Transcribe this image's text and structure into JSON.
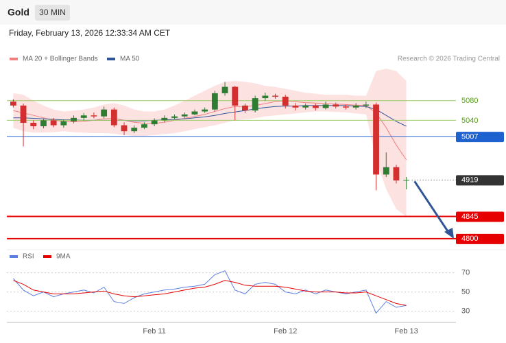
{
  "header": {
    "symbol": "Gold",
    "interval": "30 MIN",
    "timestamp": "Friday, February 13, 2026 12:33:34 AM CET"
  },
  "chart_data": [
    {
      "type": "candlestick",
      "source": "Research © 2026 Trading Central",
      "categories": [
        null,
        null,
        null,
        null,
        null,
        null,
        null,
        null,
        null,
        null,
        null,
        null,
        null,
        null,
        "Feb 11",
        null,
        null,
        null,
        null,
        null,
        null,
        null,
        null,
        null,
        null,
        null,
        null,
        "Feb 12",
        null,
        null,
        null,
        null,
        null,
        null,
        null,
        null,
        null,
        null,
        null,
        "Feb 13"
      ],
      "open": [
        5078,
        5070,
        5035,
        5028,
        5040,
        5030,
        5038,
        5045,
        5050,
        5048,
        5062,
        5030,
        5018,
        5025,
        5032,
        5040,
        5045,
        5048,
        5052,
        5058,
        5062,
        5095,
        5108,
        5070,
        5060,
        5085,
        5090,
        5088,
        5070,
        5066,
        5070,
        5065,
        5072,
        5068,
        5066,
        5070,
        5072,
        4930,
        4945,
        4918
      ],
      "high": [
        5083,
        5074,
        5040,
        5044,
        5045,
        5042,
        5050,
        5055,
        5056,
        5068,
        5066,
        5036,
        5030,
        5036,
        5044,
        5050,
        5052,
        5056,
        5062,
        5066,
        5100,
        5118,
        5110,
        5074,
        5090,
        5096,
        5094,
        5092,
        5075,
        5074,
        5074,
        5078,
        5076,
        5072,
        5075,
        5078,
        5076,
        4975,
        4950,
        4925
      ],
      "low": [
        5066,
        4987,
        5022,
        5024,
        5026,
        5025,
        5034,
        5040,
        5044,
        5044,
        5026,
        5010,
        5014,
        5022,
        5028,
        5036,
        5042,
        5045,
        5050,
        5055,
        5058,
        5090,
        5040,
        5055,
        5056,
        5080,
        5084,
        5064,
        5060,
        5062,
        5060,
        5062,
        5064,
        5062,
        5062,
        5065,
        4898,
        4925,
        4912,
        4900
      ],
      "close": [
        5070,
        5035,
        5028,
        5040,
        5030,
        5038,
        5045,
        5050,
        5048,
        5062,
        5030,
        5018,
        5025,
        5032,
        5040,
        5045,
        5048,
        5052,
        5058,
        5062,
        5095,
        5108,
        5070,
        5060,
        5085,
        5090,
        5088,
        5070,
        5066,
        5070,
        5065,
        5072,
        5068,
        5066,
        5070,
        5072,
        4930,
        4945,
        4918,
        4919
      ],
      "up_color": "#2e7d32",
      "down_color": "#d32f2f",
      "series": [
        {
          "name": "MA 20 + Bollinger Bands",
          "color": "#f08080",
          "band_color": "#fde2e2",
          "values": [
            5060,
            5055,
            5050,
            5045,
            5040,
            5038,
            5037,
            5038,
            5040,
            5043,
            5044,
            5040,
            5036,
            5034,
            5034,
            5036,
            5040,
            5044,
            5048,
            5052,
            5058,
            5064,
            5068,
            5068,
            5070,
            5074,
            5078,
            5080,
            5078,
            5076,
            5075,
            5074,
            5073,
            5072,
            5071,
            5070,
            5055,
            5025,
            4990,
            4960
          ],
          "upper": [
            5095,
            5092,
            5080,
            5070,
            5062,
            5058,
            5060,
            5062,
            5066,
            5072,
            5075,
            5070,
            5062,
            5058,
            5058,
            5062,
            5070,
            5080,
            5090,
            5100,
            5110,
            5118,
            5120,
            5118,
            5115,
            5110,
            5108,
            5104,
            5100,
            5096,
            5094,
            5092,
            5092,
            5092,
            5090,
            5090,
            5140,
            5145,
            5140,
            5120
          ],
          "lower": [
            5025,
            5018,
            5015,
            5015,
            5016,
            5018,
            5016,
            5015,
            5014,
            5014,
            5013,
            5010,
            5008,
            5008,
            5010,
            5012,
            5014,
            5018,
            5022,
            5026,
            5030,
            5035,
            5040,
            5042,
            5044,
            5048,
            5050,
            5052,
            5054,
            5056,
            5058,
            5058,
            5057,
            5056,
            5054,
            5052,
            4960,
            4900,
            4860,
            4845
          ]
        },
        {
          "name": "MA 50",
          "color": "#2f5597",
          "values": [
            5045,
            5045,
            5044,
            5043,
            5042,
            5041,
            5041,
            5040,
            5040,
            5040,
            5040,
            5040,
            5039,
            5039,
            5040,
            5041,
            5042,
            5043,
            5045,
            5047,
            5050,
            5054,
            5057,
            5060,
            5063,
            5066,
            5068,
            5069,
            5069,
            5070,
            5070,
            5070,
            5070,
            5070,
            5069,
            5068,
            5062,
            5050,
            5038,
            5028
          ]
        }
      ],
      "levels": [
        {
          "value": 5080,
          "color": "#9ccc65",
          "text_color": "#5a9e1e",
          "style": "solid",
          "boxed": false
        },
        {
          "value": 5040,
          "color": "#9ccc65",
          "text_color": "#5a9e1e",
          "style": "solid",
          "boxed": false
        },
        {
          "value": 5007,
          "color": "#1e62d0",
          "text_color": "#ffffff",
          "style": "solid",
          "boxed": true
        },
        {
          "value": 4919,
          "color": "#333333",
          "text_color": "#ffffff",
          "style": "dotted",
          "boxed": true
        },
        {
          "value": 4845,
          "color": "#e60000",
          "text_color": "#ffffff",
          "style": "thick",
          "boxed": true
        },
        {
          "value": 4800,
          "color": "#e60000",
          "text_color": "#ffffff",
          "style": "thick",
          "boxed": true
        }
      ],
      "ylim": [
        4790,
        5145
      ]
    },
    {
      "type": "line",
      "series": [
        {
          "name": "RSI",
          "color": "#5b7fe0",
          "values": [
            64,
            52,
            46,
            50,
            45,
            48,
            50,
            52,
            49,
            55,
            40,
            38,
            44,
            48,
            50,
            52,
            53,
            55,
            56,
            58,
            68,
            72,
            52,
            48,
            58,
            60,
            58,
            50,
            48,
            52,
            48,
            52,
            50,
            48,
            50,
            52,
            28,
            40,
            34,
            36
          ]
        },
        {
          "name": "9MA",
          "color": "#e60000",
          "values": [
            62,
            58,
            52,
            50,
            48,
            48,
            48,
            49,
            50,
            51,
            48,
            46,
            45,
            46,
            47,
            48,
            50,
            52,
            54,
            55,
            58,
            62,
            60,
            57,
            56,
            56,
            56,
            55,
            53,
            51,
            50,
            50,
            50,
            49,
            49,
            50,
            46,
            42,
            38,
            36
          ]
        }
      ],
      "ylim": [
        19,
        79
      ],
      "yticks": [
        30,
        50,
        70
      ],
      "grid": true
    }
  ]
}
